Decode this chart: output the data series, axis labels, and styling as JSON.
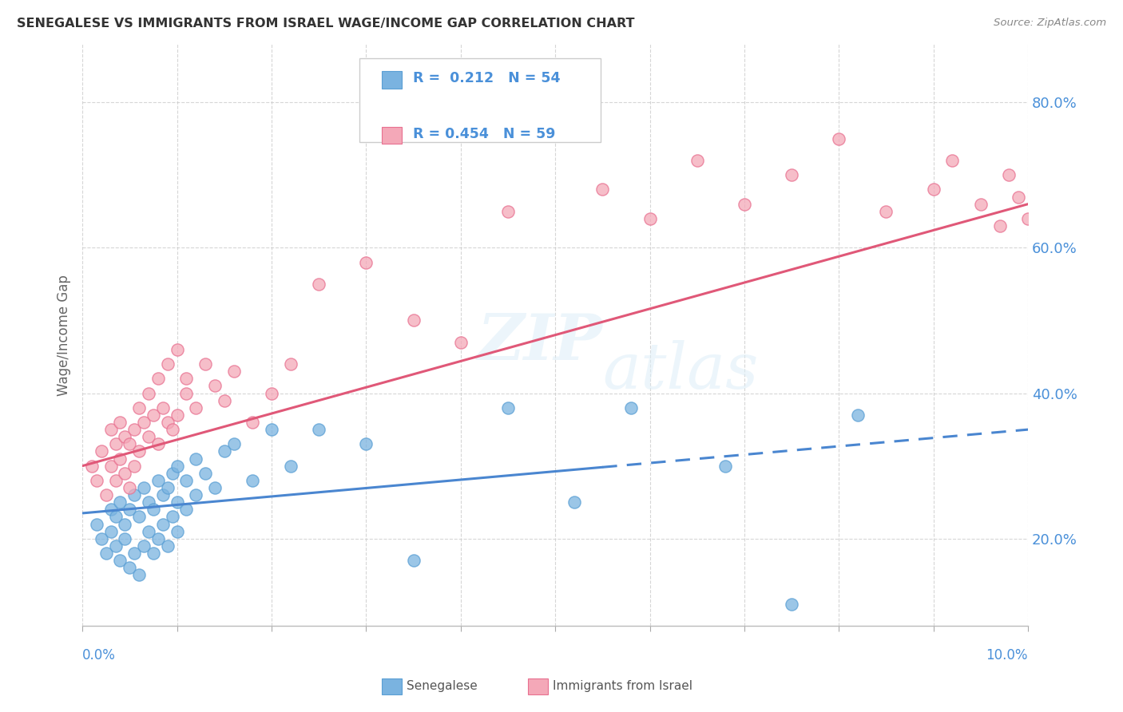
{
  "title": "SENEGALESE VS IMMIGRANTS FROM ISRAEL WAGE/INCOME GAP CORRELATION CHART",
  "source": "Source: ZipAtlas.com",
  "ylabel": "Wage/Income Gap",
  "xlim": [
    0.0,
    10.0
  ],
  "ylim": [
    8.0,
    88.0
  ],
  "yticks": [
    20.0,
    40.0,
    60.0,
    80.0
  ],
  "ytick_labels": [
    "20.0%",
    "40.0%",
    "60.0%",
    "80.0%"
  ],
  "blue_R": "0.212",
  "blue_N": "54",
  "pink_R": "0.454",
  "pink_N": "59",
  "blue_color": "#7ab3e0",
  "blue_edge_color": "#5a9fd4",
  "pink_color": "#f4a8b8",
  "pink_edge_color": "#e87090",
  "blue_line_color": "#4a86d0",
  "pink_line_color": "#e05878",
  "watermark": "ZIPatlas",
  "blue_scatter_x": [
    0.15,
    0.2,
    0.25,
    0.3,
    0.3,
    0.35,
    0.35,
    0.4,
    0.4,
    0.45,
    0.45,
    0.5,
    0.5,
    0.55,
    0.55,
    0.6,
    0.6,
    0.65,
    0.65,
    0.7,
    0.7,
    0.75,
    0.75,
    0.8,
    0.8,
    0.85,
    0.85,
    0.9,
    0.9,
    0.95,
    0.95,
    1.0,
    1.0,
    1.0,
    1.1,
    1.1,
    1.2,
    1.2,
    1.3,
    1.4,
    1.5,
    1.6,
    1.8,
    2.0,
    2.2,
    2.5,
    3.0,
    3.5,
    4.5,
    5.2,
    5.8,
    6.8,
    7.5,
    8.2
  ],
  "blue_scatter_y": [
    22.0,
    20.0,
    18.0,
    24.0,
    21.0,
    19.0,
    23.0,
    17.0,
    25.0,
    20.0,
    22.0,
    16.0,
    24.0,
    18.0,
    26.0,
    15.0,
    23.0,
    19.0,
    27.0,
    21.0,
    25.0,
    18.0,
    24.0,
    20.0,
    28.0,
    22.0,
    26.0,
    19.0,
    27.0,
    23.0,
    29.0,
    21.0,
    25.0,
    30.0,
    24.0,
    28.0,
    26.0,
    31.0,
    29.0,
    27.0,
    32.0,
    33.0,
    28.0,
    35.0,
    30.0,
    35.0,
    33.0,
    17.0,
    38.0,
    25.0,
    38.0,
    30.0,
    11.0,
    37.0
  ],
  "pink_scatter_x": [
    0.1,
    0.15,
    0.2,
    0.25,
    0.3,
    0.3,
    0.35,
    0.35,
    0.4,
    0.4,
    0.45,
    0.45,
    0.5,
    0.5,
    0.55,
    0.55,
    0.6,
    0.6,
    0.65,
    0.7,
    0.7,
    0.75,
    0.8,
    0.8,
    0.85,
    0.9,
    0.9,
    0.95,
    1.0,
    1.0,
    1.1,
    1.1,
    1.2,
    1.3,
    1.4,
    1.5,
    1.6,
    1.8,
    2.0,
    2.2,
    2.5,
    3.0,
    3.5,
    4.0,
    4.5,
    5.5,
    6.0,
    6.5,
    7.0,
    7.5,
    8.0,
    8.5,
    9.0,
    9.2,
    9.5,
    9.7,
    9.8,
    9.9,
    10.0
  ],
  "pink_scatter_y": [
    30.0,
    28.0,
    32.0,
    26.0,
    35.0,
    30.0,
    33.0,
    28.0,
    36.0,
    31.0,
    29.0,
    34.0,
    27.0,
    33.0,
    35.0,
    30.0,
    32.0,
    38.0,
    36.0,
    34.0,
    40.0,
    37.0,
    33.0,
    42.0,
    38.0,
    36.0,
    44.0,
    35.0,
    37.0,
    46.0,
    40.0,
    42.0,
    38.0,
    44.0,
    41.0,
    39.0,
    43.0,
    36.0,
    40.0,
    44.0,
    55.0,
    58.0,
    50.0,
    47.0,
    65.0,
    68.0,
    64.0,
    72.0,
    66.0,
    70.0,
    75.0,
    65.0,
    68.0,
    72.0,
    66.0,
    63.0,
    70.0,
    67.0,
    64.0
  ],
  "blue_trend_x0": 0.0,
  "blue_trend_x1": 10.0,
  "blue_trend_y0": 23.5,
  "blue_trend_y1": 35.0,
  "blue_solid_end": 5.5,
  "pink_trend_x0": 0.0,
  "pink_trend_x1": 10.0,
  "pink_trend_y0": 30.0,
  "pink_trend_y1": 66.0,
  "grid_color": "#cccccc",
  "background_color": "#ffffff",
  "title_color": "#333333",
  "axis_color": "#4a90d9",
  "legend_text_color": "#4a90d9"
}
